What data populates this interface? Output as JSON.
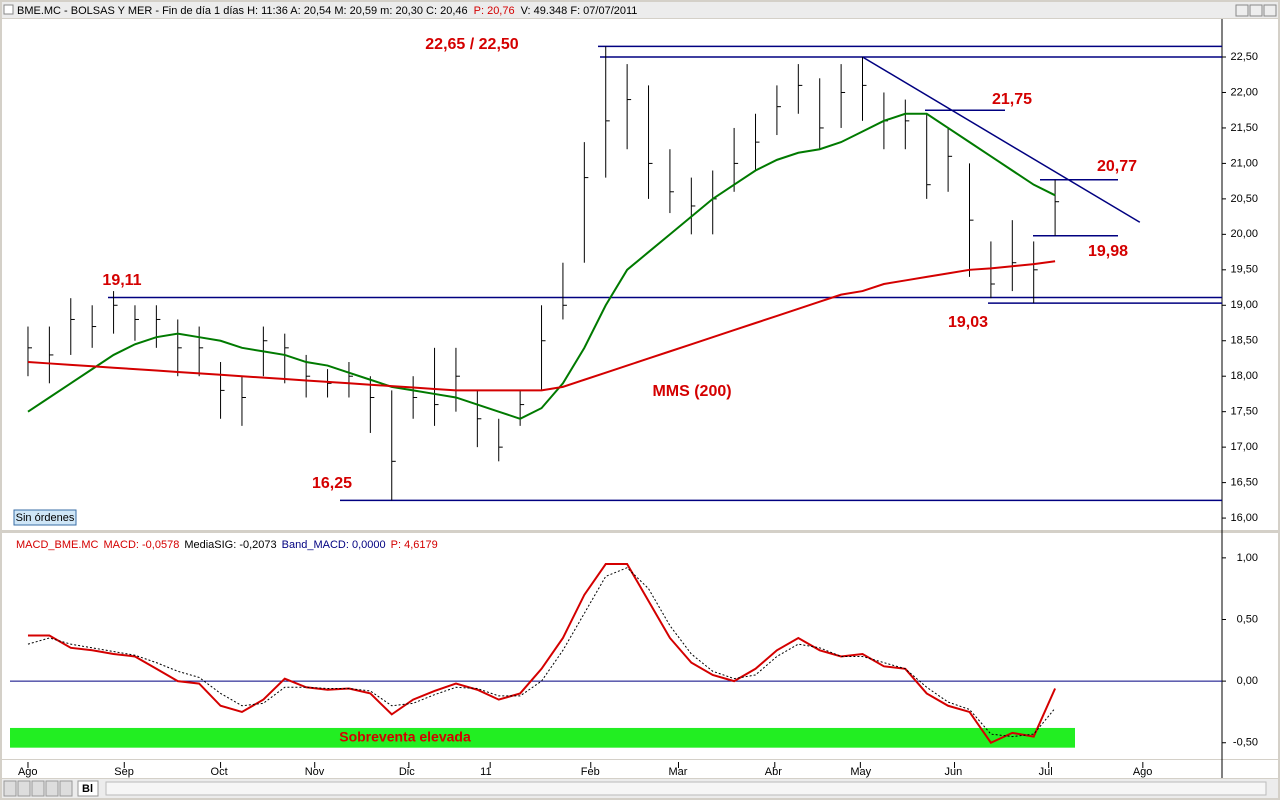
{
  "header": {
    "parts": [
      "BME.MC - BOLSAS Y MER - Fin de día 1 días  H: 11:36  A: 20,54  M: 20,59  m: 20,30  C: 20,46",
      "P: 20,76",
      "V: 49.348  F: 07/07/2011"
    ]
  },
  "button": "Sin órdenes",
  "nav": "Bl",
  "chart_data": [
    {
      "type": "ohlc",
      "x": [
        0,
        1,
        2,
        3,
        4,
        5,
        6,
        7,
        8,
        9,
        10,
        11,
        12,
        13,
        14,
        15,
        16,
        17,
        18,
        19,
        20,
        21,
        22,
        23,
        24,
        25,
        26,
        27,
        28,
        29,
        30,
        31,
        32,
        33,
        34,
        35,
        36,
        37,
        38,
        39,
        40,
        41,
        42,
        43,
        44,
        45,
        46,
        47,
        48
      ],
      "high": [
        18.7,
        18.7,
        19.1,
        19.0,
        19.2,
        19.0,
        19.0,
        18.8,
        18.7,
        18.2,
        18.0,
        18.7,
        18.6,
        18.3,
        18.1,
        18.2,
        18.0,
        17.8,
        18.0,
        18.4,
        18.4,
        17.8,
        17.4,
        17.8,
        19.0,
        19.6,
        21.3,
        22.65,
        22.4,
        22.1,
        21.2,
        20.8,
        20.9,
        21.5,
        21.7,
        22.1,
        22.4,
        22.2,
        22.4,
        22.5,
        22.0,
        21.9,
        21.7,
        21.5,
        21.0,
        19.9,
        20.2,
        19.9,
        20.77
      ],
      "low": [
        18.0,
        17.9,
        18.3,
        18.4,
        18.6,
        18.5,
        18.4,
        18.0,
        18.0,
        17.4,
        17.3,
        18.0,
        17.9,
        17.7,
        17.7,
        17.7,
        17.2,
        16.25,
        17.4,
        17.3,
        17.5,
        17.0,
        16.8,
        17.3,
        17.8,
        18.8,
        19.6,
        20.8,
        21.2,
        20.5,
        20.3,
        20.0,
        20.0,
        20.6,
        20.9,
        21.4,
        21.7,
        21.2,
        21.5,
        21.6,
        21.2,
        21.2,
        20.5,
        20.6,
        19.4,
        19.1,
        19.2,
        19.03,
        19.98
      ],
      "close": [
        18.4,
        18.3,
        18.8,
        18.7,
        19.0,
        18.8,
        18.8,
        18.4,
        18.4,
        17.8,
        17.7,
        18.5,
        18.4,
        18.0,
        17.9,
        18.0,
        17.7,
        16.8,
        17.7,
        17.6,
        18.0,
        17.4,
        17.0,
        17.6,
        18.5,
        19.0,
        20.8,
        21.6,
        21.9,
        21.0,
        20.6,
        20.4,
        20.5,
        21.0,
        21.3,
        21.8,
        22.1,
        21.5,
        22.0,
        22.1,
        21.6,
        21.6,
        20.7,
        21.1,
        20.2,
        19.3,
        19.6,
        19.5,
        20.46
      ],
      "color": "#000000",
      "series": [
        {
          "color": "#007a00",
          "values": [
            17.5,
            17.7,
            17.9,
            18.1,
            18.3,
            18.45,
            18.55,
            18.6,
            18.55,
            18.5,
            18.4,
            18.35,
            18.3,
            18.2,
            18.15,
            18.05,
            17.95,
            17.85,
            17.8,
            17.75,
            17.7,
            17.6,
            17.5,
            17.4,
            17.55,
            17.9,
            18.4,
            19.0,
            19.5,
            19.75,
            20.0,
            20.25,
            20.5,
            20.7,
            20.9,
            21.05,
            21.15,
            21.2,
            21.3,
            21.45,
            21.6,
            21.7,
            21.7,
            21.5,
            21.3,
            21.1,
            20.9,
            20.7,
            20.55
          ]
        },
        {
          "name": "MMS (200)",
          "color": "#d40000",
          "values": [
            18.2,
            18.18,
            18.16,
            18.14,
            18.12,
            18.1,
            18.08,
            18.06,
            18.04,
            18.02,
            18.0,
            17.98,
            17.96,
            17.94,
            17.92,
            17.9,
            17.88,
            17.86,
            17.84,
            17.82,
            17.8,
            17.8,
            17.8,
            17.8,
            17.8,
            17.85,
            17.95,
            18.05,
            18.15,
            18.25,
            18.35,
            18.45,
            18.55,
            18.65,
            18.75,
            18.85,
            18.95,
            19.05,
            19.15,
            19.2,
            19.3,
            19.35,
            19.4,
            19.45,
            19.5,
            19.52,
            19.55,
            19.58,
            19.62
          ]
        }
      ],
      "levels": [
        22.65,
        22.5,
        21.75,
        20.77,
        19.98,
        19.11,
        19.03,
        16.25
      ],
      "level_color": "#000080",
      "trendline": {
        "x": [
          39,
          51.96
        ],
        "y": [
          22.5,
          20.17
        ]
      },
      "annotations": [
        "22,65 / 22,50",
        "21,75",
        "20,77",
        "19,98",
        "19,11",
        "19,03",
        "16,25"
      ],
      "xlim": [
        -0.84,
        55.8
      ],
      "xticks": [
        {
          "value": 0,
          "label": "Ago"
        },
        {
          "value": 4.5,
          "label": "Sep"
        },
        {
          "value": 9,
          "label": "Oct"
        },
        {
          "value": 13.4,
          "label": "Nov"
        },
        {
          "value": 17.8,
          "label": "Dic"
        },
        {
          "value": 21.6,
          "label": "11"
        },
        {
          "value": 26.3,
          "label": "Feb"
        },
        {
          "value": 30.4,
          "label": "Mar"
        },
        {
          "value": 34.9,
          "label": "Abr"
        },
        {
          "value": 38.9,
          "label": "May"
        },
        {
          "value": 43.3,
          "label": "Jun"
        },
        {
          "value": 47.7,
          "label": "Jul"
        },
        {
          "value": 52.1,
          "label": "Ago"
        }
      ],
      "ylim": [
        15.86,
        23.05
      ],
      "yticks": [
        {
          "value": 16,
          "label": "16,00"
        },
        {
          "value": 16.5,
          "label": "16,50"
        },
        {
          "value": 17,
          "label": "17,00"
        },
        {
          "value": 17.5,
          "label": "17,50"
        },
        {
          "value": 18,
          "label": "18,00"
        },
        {
          "value": 18.5,
          "label": "18,50"
        },
        {
          "value": 19,
          "label": "19,00"
        },
        {
          "value": 19.5,
          "label": "19,50"
        },
        {
          "value": 20,
          "label": "20,00"
        },
        {
          "value": 20.5,
          "label": "20,50"
        },
        {
          "value": 21,
          "label": "21,00"
        },
        {
          "value": 21.5,
          "label": "21,50"
        },
        {
          "value": 22,
          "label": "22,00"
        },
        {
          "value": 22.5,
          "label": "22,50"
        }
      ]
    },
    {
      "type": "macd",
      "title_parts": [
        "MACD_BME.MC",
        "MACD: -0,0578",
        "MediaSIG: -0,2073",
        "Band_MACD: 0,0000",
        "P: 4,6179"
      ],
      "x": [
        0,
        1,
        2,
        3,
        4,
        5,
        6,
        7,
        8,
        9,
        10,
        11,
        12,
        13,
        14,
        15,
        16,
        17,
        18,
        19,
        20,
        21,
        22,
        23,
        24,
        25,
        26,
        27,
        28,
        29,
        30,
        31,
        32,
        33,
        34,
        35,
        36,
        37,
        38,
        39,
        40,
        41,
        42,
        43,
        44,
        45,
        46,
        47,
        48
      ],
      "series": [
        {
          "color": "#d40000",
          "values": [
            0.37,
            0.37,
            0.27,
            0.25,
            0.22,
            0.2,
            0.1,
            0.0,
            -0.02,
            -0.2,
            -0.25,
            -0.15,
            0.02,
            -0.05,
            -0.07,
            -0.06,
            -0.1,
            -0.27,
            -0.15,
            -0.08,
            -0.02,
            -0.07,
            -0.15,
            -0.1,
            0.1,
            0.35,
            0.7,
            0.95,
            0.95,
            0.65,
            0.35,
            0.15,
            0.05,
            0.0,
            0.1,
            0.25,
            0.35,
            0.25,
            0.2,
            0.22,
            0.12,
            0.1,
            -0.1,
            -0.2,
            -0.25,
            -0.5,
            -0.42,
            -0.45,
            -0.06
          ]
        },
        {
          "color": "#000000",
          "dashed": true,
          "values": [
            0.3,
            0.35,
            0.3,
            0.27,
            0.24,
            0.21,
            0.15,
            0.08,
            0.03,
            -0.1,
            -0.2,
            -0.18,
            -0.05,
            -0.05,
            -0.06,
            -0.06,
            -0.08,
            -0.2,
            -0.18,
            -0.11,
            -0.05,
            -0.06,
            -0.12,
            -0.12,
            0.0,
            0.25,
            0.55,
            0.85,
            0.92,
            0.75,
            0.45,
            0.22,
            0.08,
            0.02,
            0.05,
            0.2,
            0.3,
            0.27,
            0.2,
            0.2,
            0.15,
            0.1,
            -0.05,
            -0.17,
            -0.23,
            -0.43,
            -0.45,
            -0.43,
            -0.22
          ]
        }
      ],
      "band": {
        "label": "Sobreventa elevada",
        "from": -0.54,
        "to": -0.38,
        "color": "#22ee22"
      },
      "xlim": [
        -0.84,
        55.8
      ],
      "ylim": [
        -0.64,
        1.08
      ],
      "yticks": [
        {
          "value": 1,
          "label": "1,00"
        },
        {
          "value": 0.5,
          "label": "0,50"
        },
        {
          "value": 0,
          "label": "0,00"
        },
        {
          "value": -0.5,
          "label": "-0,50"
        }
      ]
    }
  ]
}
